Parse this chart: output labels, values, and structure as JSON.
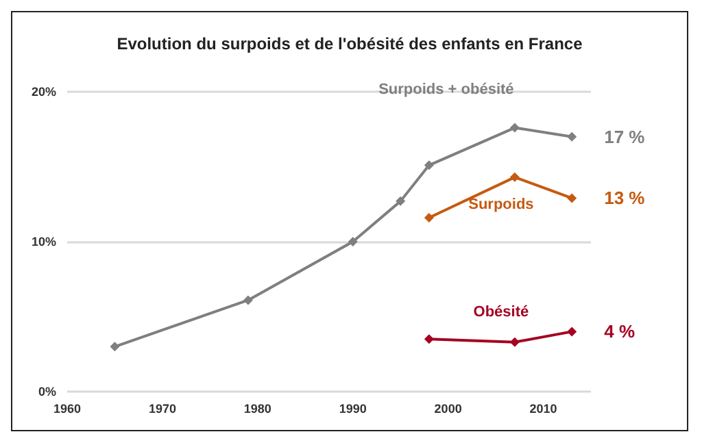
{
  "chart_data": {
    "type": "line",
    "title": "Evolution du surpoids et de l'obésité des enfants en France",
    "xlim": [
      1960,
      2015
    ],
    "xticks": [
      1960,
      1970,
      1980,
      1990,
      2000,
      2010
    ],
    "ylim": [
      0,
      20
    ],
    "yticks": [
      {
        "value": 0,
        "label": "0%"
      },
      {
        "value": 10,
        "label": "10%"
      },
      {
        "value": 20,
        "label": "20%"
      }
    ],
    "grid": "y",
    "marker": "diamond",
    "line_style": "solid",
    "legend": false,
    "series": [
      {
        "name": "Surpoids + obésité",
        "color": "#7f7f7f",
        "x": [
          1965,
          1979,
          1990,
          1995,
          1998,
          2007,
          2013
        ],
        "values": [
          3.0,
          6.1,
          10.0,
          12.7,
          15.1,
          17.6,
          17.0
        ],
        "value_labels": [
          null,
          null,
          null,
          null,
          null,
          null,
          "17 %"
        ]
      },
      {
        "name": "Surpoids",
        "color": "#c55a11",
        "x": [
          1998,
          2007,
          2013
        ],
        "values": [
          11.6,
          14.3,
          12.9
        ],
        "value_labels": [
          null,
          null,
          "13 %"
        ]
      },
      {
        "name": "Obésité",
        "color": "#a50021",
        "x": [
          1998,
          2007,
          2013
        ],
        "values": [
          3.5,
          3.3,
          4.0
        ],
        "value_labels": [
          null,
          null,
          "4 %"
        ]
      }
    ]
  }
}
